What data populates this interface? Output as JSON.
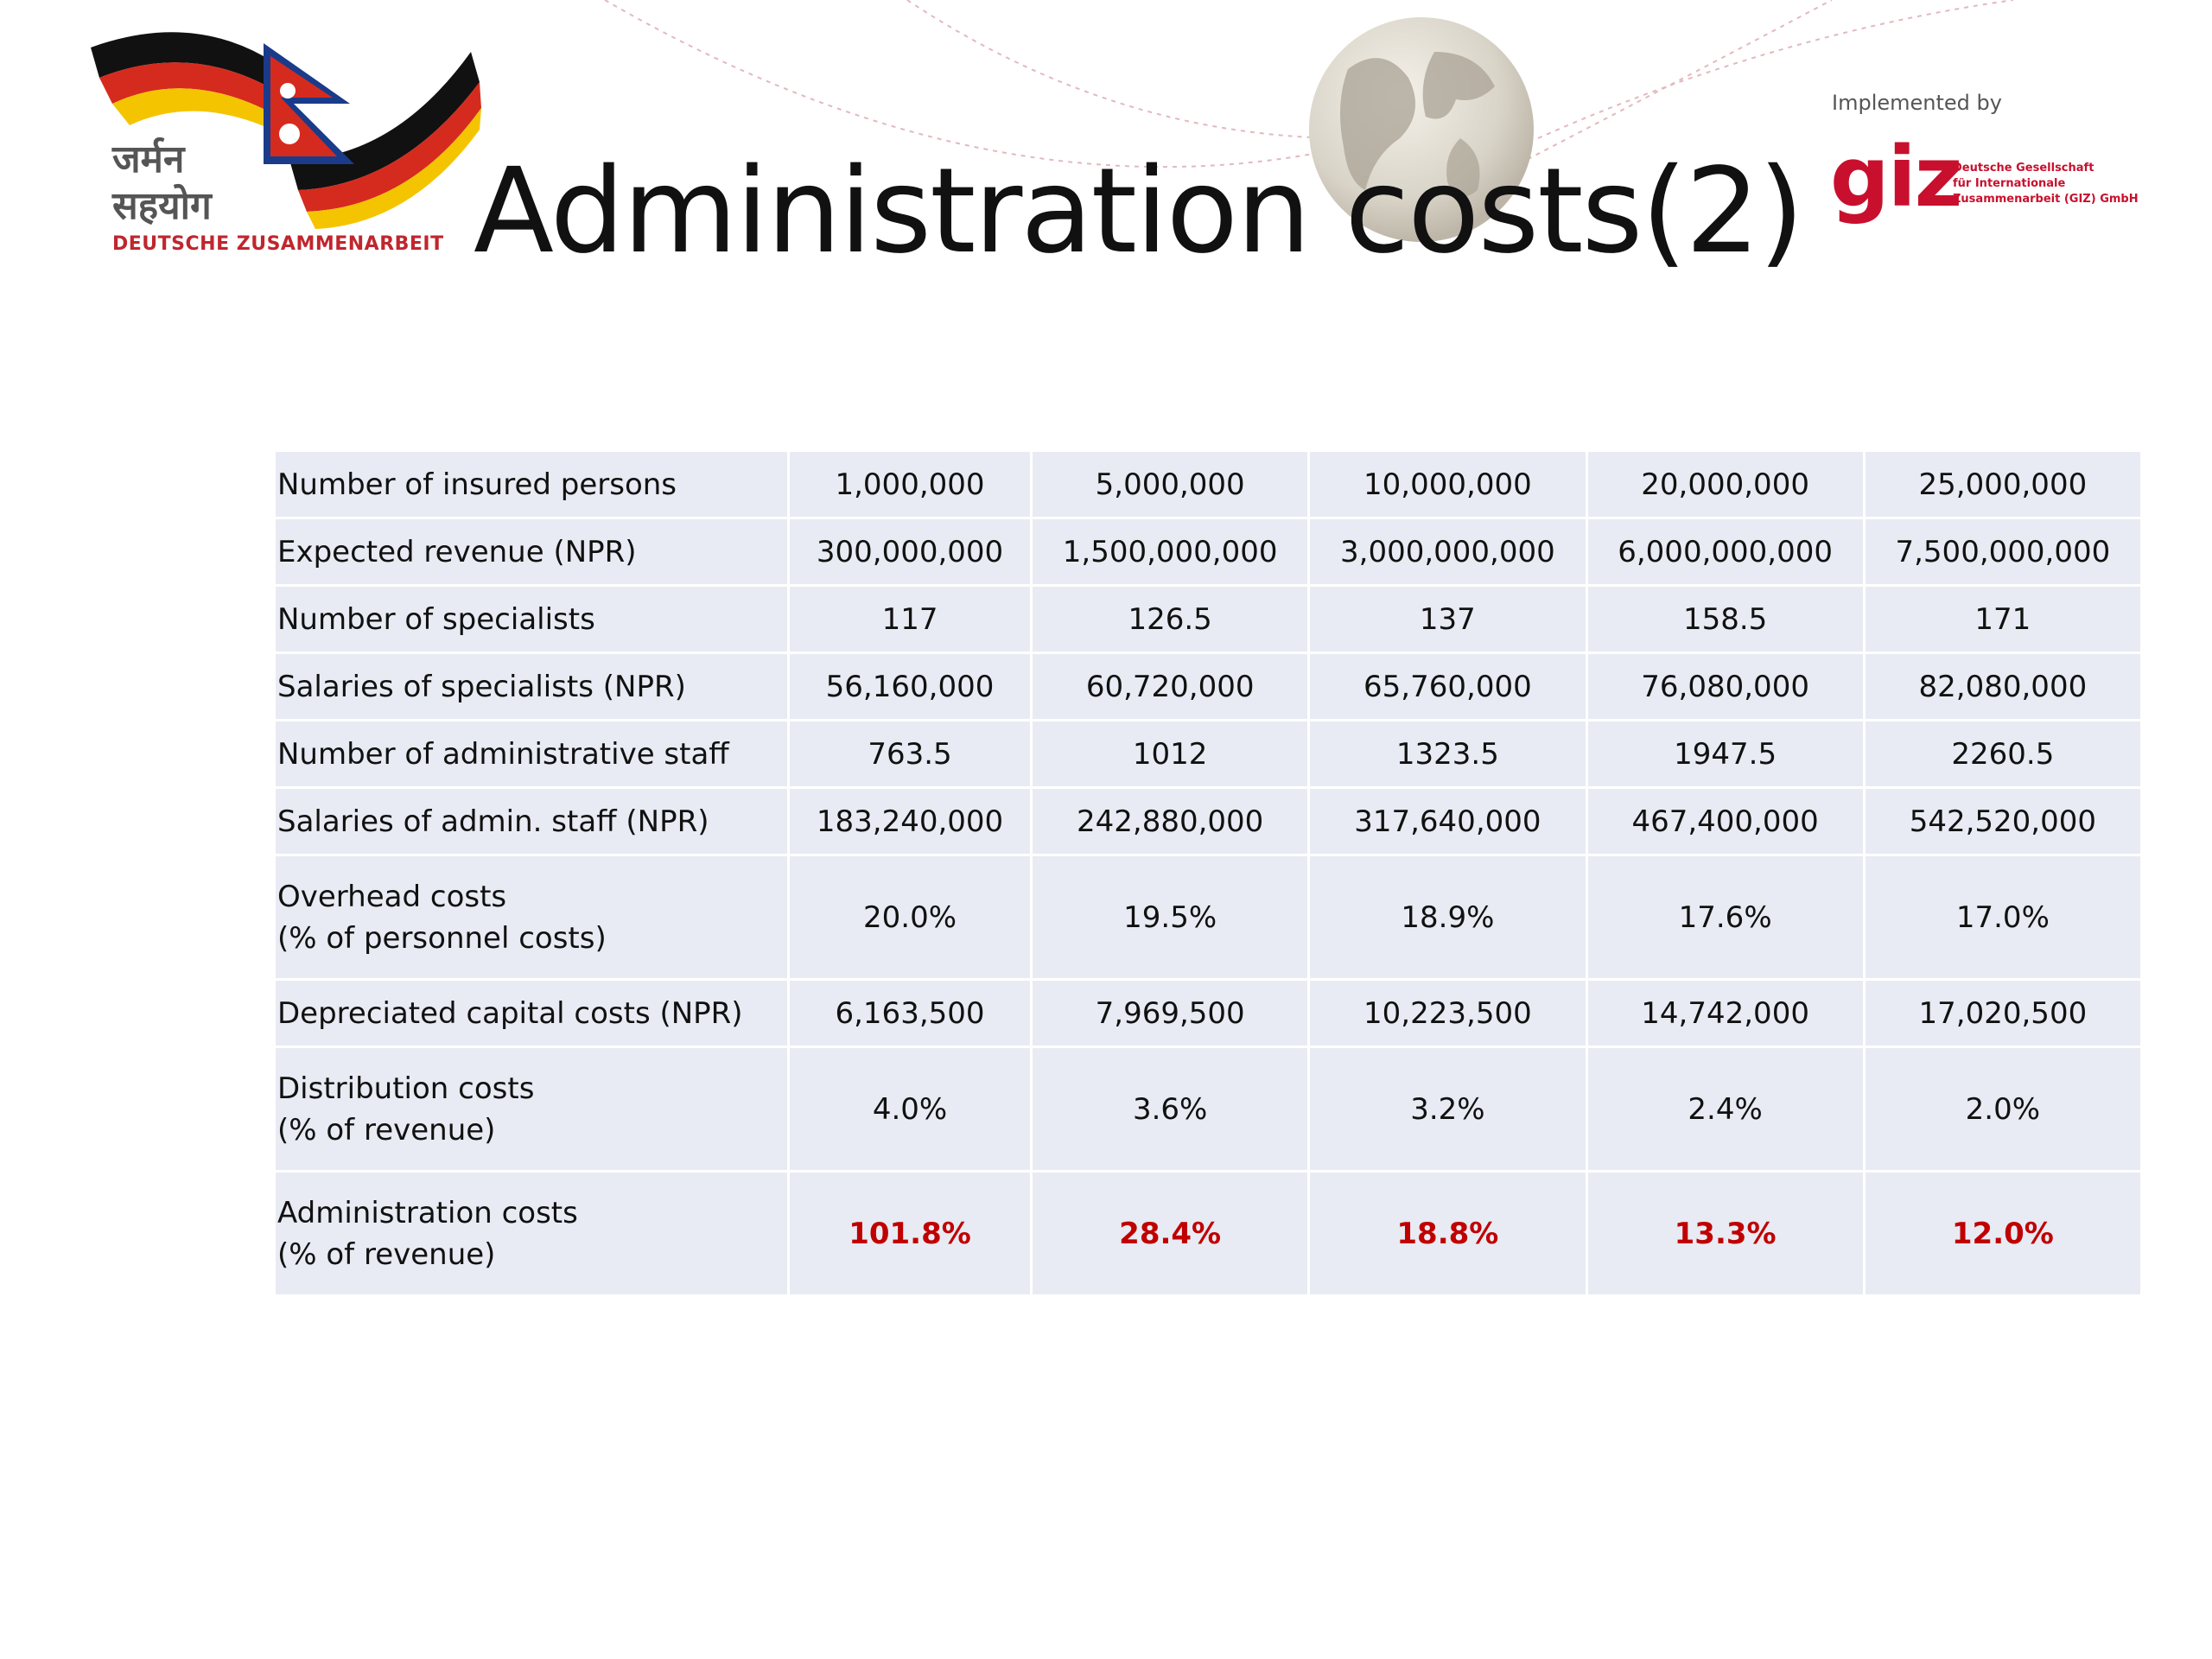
{
  "header": {
    "title": "Administration costs(2)",
    "logo_left_devanagari": "जर्मन\nसहयोग",
    "logo_left_subtitle": "DEUTSCHE ZUSAMMENARBEIT",
    "implemented_by": "Implemented by",
    "giz_mark": "giz",
    "giz_description": "Deutsche Gesellschaft\nfür Internationale\nZusammenarbeit (GIZ) GmbH"
  },
  "colors": {
    "highlight": "#c00000",
    "cell_background": "#e8ebf3",
    "giz_red": "#c8102e"
  },
  "table": {
    "rows": [
      {
        "label": "Number of insured persons",
        "values": [
          "1,000,000",
          "5,000,000",
          "10,000,000",
          "20,000,000",
          "25,000,000"
        ]
      },
      {
        "label": "Expected revenue (NPR)",
        "values": [
          "300,000,000",
          "1,500,000,000",
          "3,000,000,000",
          "6,000,000,000",
          "7,500,000,000"
        ]
      },
      {
        "label": "Number of specialists",
        "values": [
          "117",
          "126.5",
          "137",
          "158.5",
          "171"
        ]
      },
      {
        "label": "Salaries of specialists (NPR)",
        "values": [
          "56,160,000",
          "60,720,000",
          "65,760,000",
          "76,080,000",
          "82,080,000"
        ]
      },
      {
        "label": "Number of administrative staff",
        "values": [
          "763.5",
          "1012",
          "1323.5",
          "1947.5",
          "2260.5"
        ]
      },
      {
        "label": "Salaries of admin. staff (NPR)",
        "values": [
          "183,240,000",
          "242,880,000",
          "317,640,000",
          "467,400,000",
          "542,520,000"
        ]
      },
      {
        "label": "Overhead costs",
        "label_line2": "(% of personnel costs)",
        "values": [
          "20.0%",
          "19.5%",
          "18.9%",
          "17.6%",
          "17.0%"
        ]
      },
      {
        "label": "Depreciated capital costs (NPR)",
        "values": [
          "6,163,500",
          "7,969,500",
          "10,223,500",
          "14,742,000",
          "17,020,500"
        ]
      },
      {
        "label": "Distribution costs",
        "label_line2": "(% of revenue)",
        "values": [
          "4.0%",
          "3.6%",
          "3.2%",
          "2.4%",
          "2.0%"
        ]
      },
      {
        "label": "Administration costs",
        "label_line2": "(% of revenue)",
        "values": [
          "101.8%",
          "28.4%",
          "18.8%",
          "13.3%",
          "12.0%"
        ]
      }
    ]
  }
}
